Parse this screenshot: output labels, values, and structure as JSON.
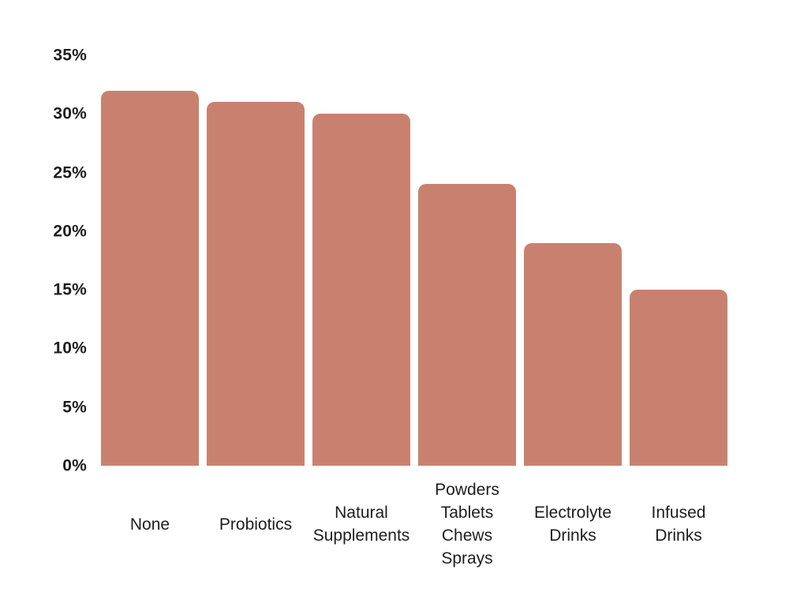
{
  "chart_data": {
    "type": "bar",
    "categories": [
      "None",
      "Probiotics",
      "Natural\nSupplements",
      "Powders\nTablets\nChews\nSprays",
      "Electrolyte\nDrinks",
      "Infused\nDrinks"
    ],
    "values": [
      32,
      31,
      30,
      24,
      19,
      15
    ],
    "value_unit": "%",
    "title": "",
    "xlabel": "",
    "ylabel": "",
    "ylim": [
      0,
      35
    ],
    "ytick_values": [
      0,
      5,
      10,
      15,
      20,
      25,
      30,
      35
    ],
    "ytick_labels": [
      "0%",
      "5%",
      "10%",
      "15%",
      "20%",
      "25%",
      "30%",
      "35%"
    ],
    "grid": false,
    "legend": false,
    "bar_color": "#C9816F",
    "text_color": "#1d1d1d",
    "background_color": "#ffffff"
  }
}
